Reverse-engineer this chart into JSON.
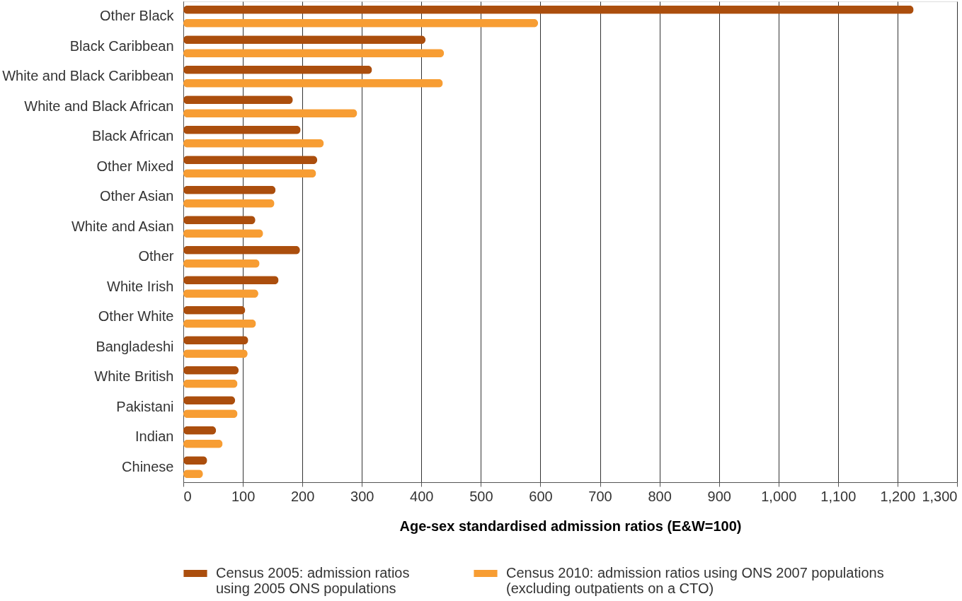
{
  "chart_data": {
    "type": "bar",
    "orientation": "horizontal",
    "xlabel": "Age-sex standardised admission ratios (E&W=100)",
    "categories": [
      "Other Black",
      "Black Caribbean",
      "White and Black Caribbean",
      "White and Black African",
      "Black African",
      "Other Mixed",
      "Other Asian",
      "White and Asian",
      "Other",
      "White Irish",
      "Other White",
      "Bangladeshi",
      "White British",
      "Pakistani",
      "Indian",
      "Chinese"
    ],
    "series": [
      {
        "name": "Census 2005: admission ratios using 2005 ONS populations",
        "color": "#ab4e0d",
        "values": [
          1227,
          407,
          317,
          184,
          197,
          225,
          155,
          121,
          196,
          160,
          104,
          109,
          93,
          87,
          55,
          40
        ]
      },
      {
        "name": "Census 2010: admission ratios using ONS 2007 populations (excluding outpatients on a CTO)",
        "color": "#f79d33",
        "values": [
          596,
          438,
          436,
          292,
          236,
          223,
          153,
          134,
          128,
          126,
          122,
          108,
          91,
          91,
          66,
          33
        ]
      }
    ],
    "xlim": [
      0,
      1300
    ],
    "xticks": [
      0,
      100,
      200,
      300,
      400,
      500,
      600,
      700,
      800,
      900,
      {
        "value": 1000,
        "label": "1,000"
      },
      {
        "value": 1100,
        "label": "1,100"
      },
      {
        "value": 1200,
        "label": "1,200"
      },
      {
        "value": 1300,
        "label": "1,300"
      }
    ],
    "grid": "x",
    "legend": "bottom"
  }
}
